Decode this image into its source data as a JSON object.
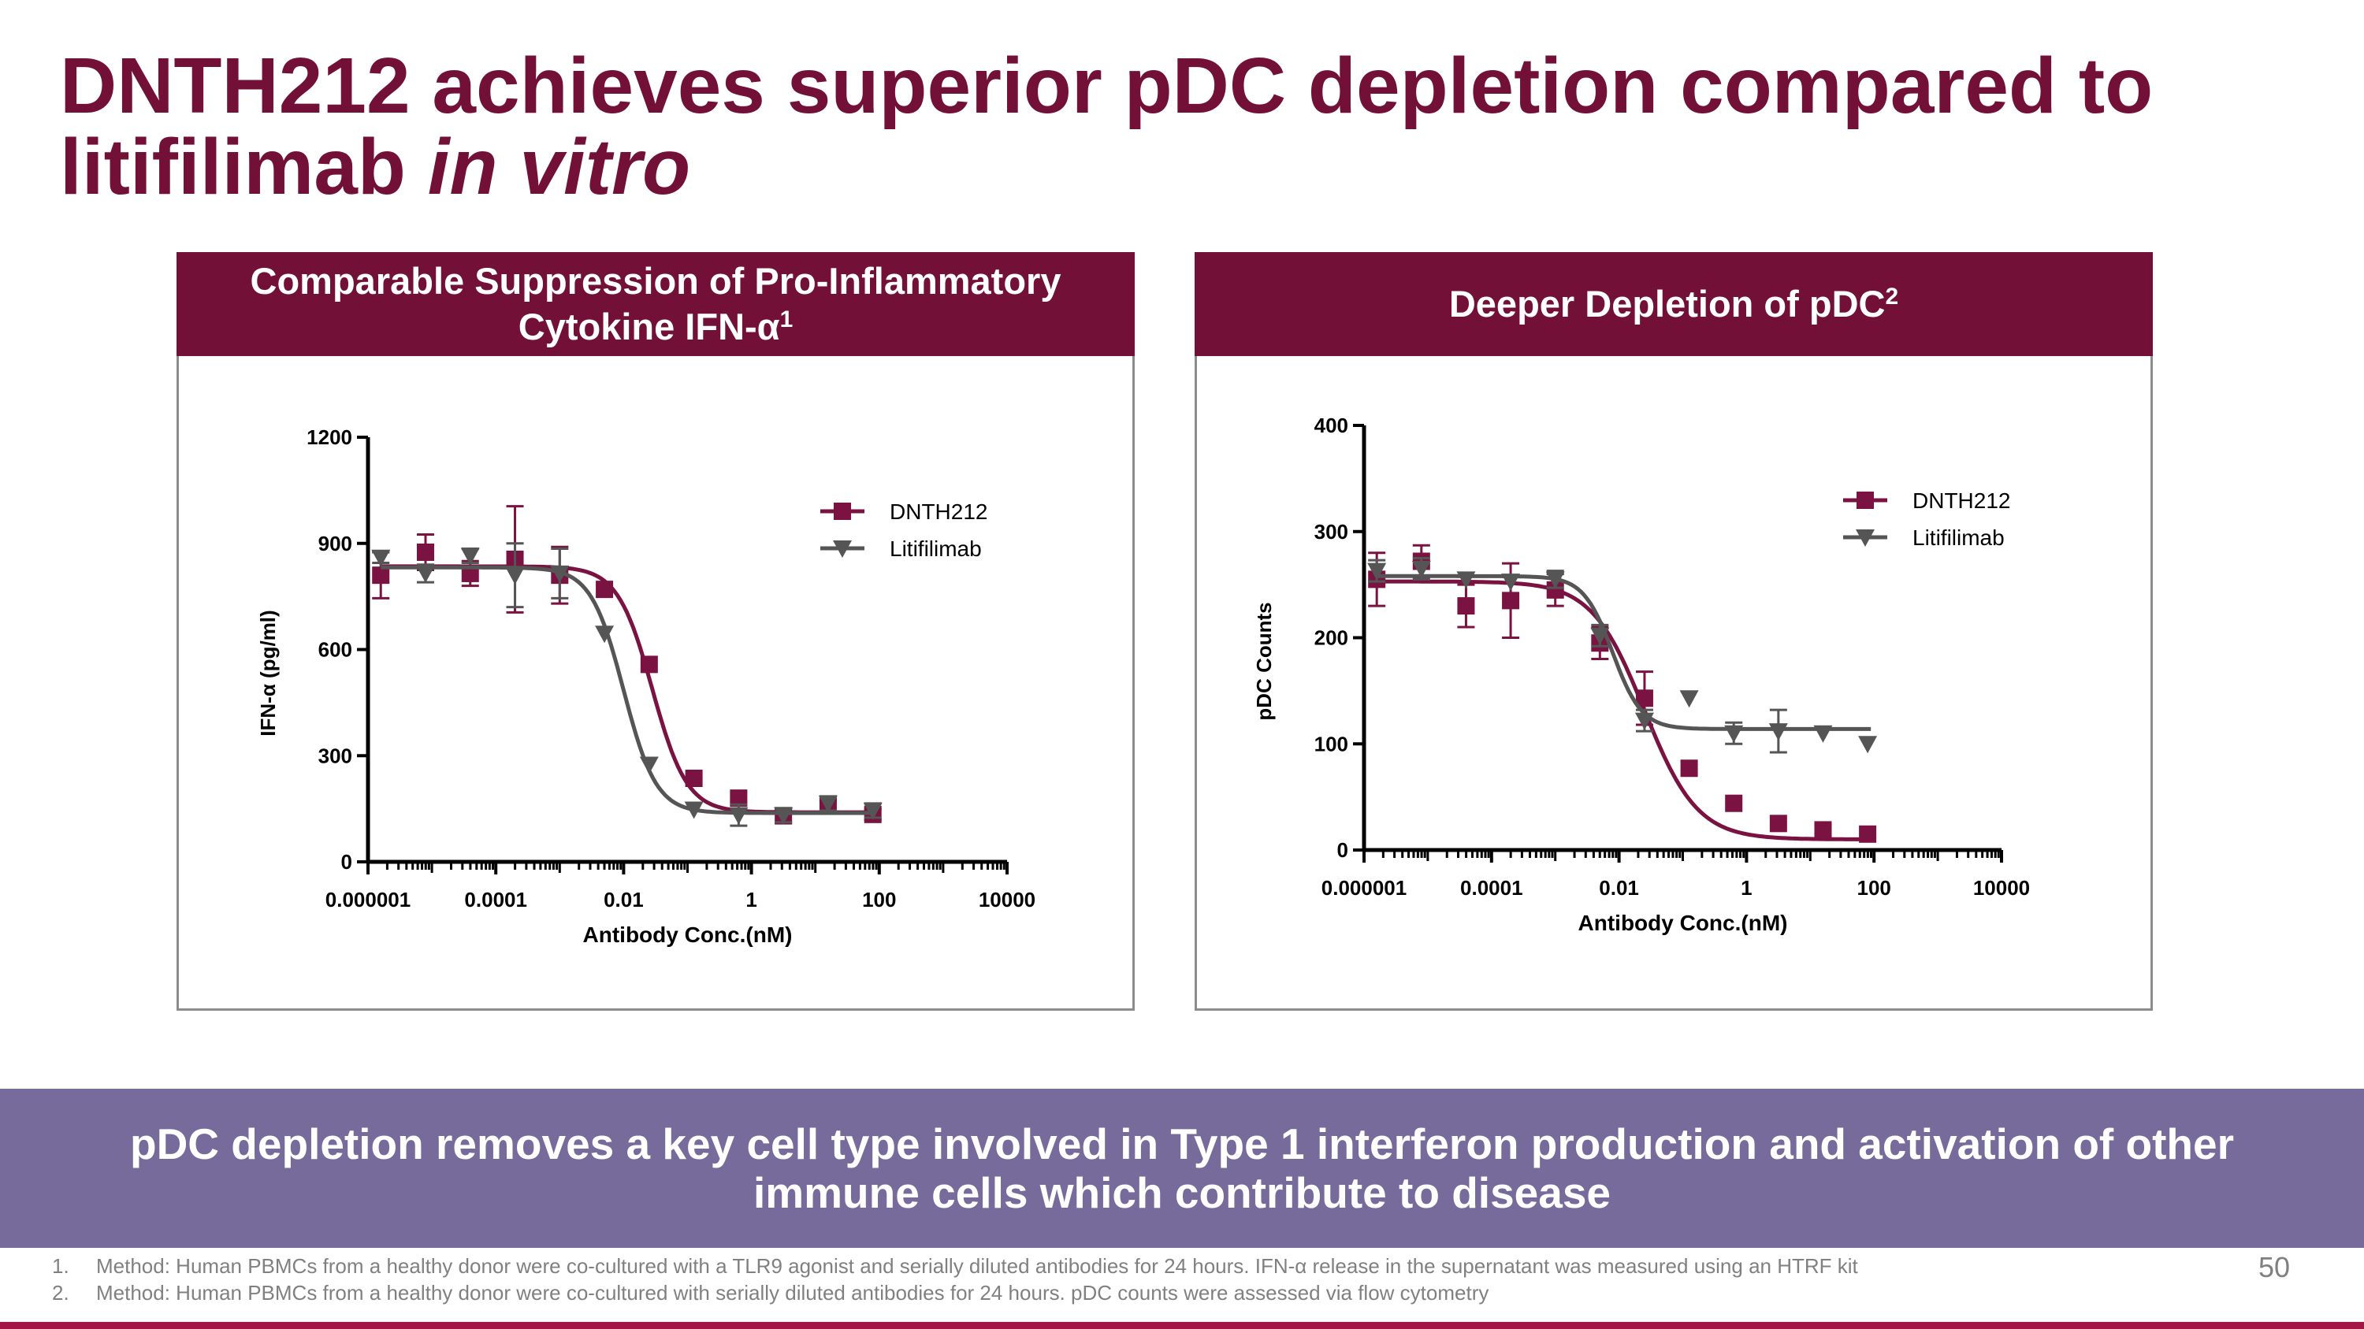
{
  "title": {
    "line1": "DNTH212 achieves superior pDC depletion compared to",
    "line2_normal": "litifilimab ",
    "line2_italic": "in vitro"
  },
  "colors": {
    "dnth212": "#7a1341",
    "litifilimab": "#555555",
    "header": "#731038",
    "banner": "#776b9c"
  },
  "panels": {
    "left": {
      "header_text": "Comparable Suppression of Pro-Inflammatory Cytokine IFN-α",
      "header_sup": "1"
    },
    "right": {
      "header_text": "Deeper Depletion of pDC",
      "header_sup": "2"
    }
  },
  "chart_data": [
    {
      "type": "line",
      "ylabel": "IFN-α (pg/ml)",
      "xlabel": "Antibody Conc.(nM)",
      "xscale": "log",
      "xlim_log10": [
        -6,
        4
      ],
      "ylim": [
        0,
        1200
      ],
      "yticks": [
        0,
        300,
        600,
        900,
        1200
      ],
      "xticks": [
        "0.000001",
        "0.0001",
        "0.01",
        "1",
        "100",
        "10000"
      ],
      "legend_position": "top-right",
      "series": [
        {
          "name": "DNTH212",
          "marker": "square",
          "fit": {
            "bottom": 140,
            "top": 835,
            "ec50_log10": -1.55,
            "hill": 1.6
          },
          "points": [
            {
              "log_x": -5.8,
              "y": 810,
              "err": 65
            },
            {
              "log_x": -5.1,
              "y": 875,
              "err": 50
            },
            {
              "log_x": -4.4,
              "y": 815,
              "err": 35
            },
            {
              "log_x": -3.7,
              "y": 855,
              "err": 150
            },
            {
              "log_x": -3.0,
              "y": 810,
              "err": 80
            },
            {
              "log_x": -2.3,
              "y": 770,
              "err": 0
            },
            {
              "log_x": -1.6,
              "y": 558,
              "err": 0
            },
            {
              "log_x": -0.9,
              "y": 236,
              "err": 0
            },
            {
              "log_x": -0.2,
              "y": 180,
              "err": 0
            },
            {
              "log_x": 0.5,
              "y": 130,
              "err": 20
            },
            {
              "log_x": 1.2,
              "y": 158,
              "err": 15
            },
            {
              "log_x": 1.9,
              "y": 134,
              "err": 15
            }
          ]
        },
        {
          "name": "Litifilimab",
          "marker": "triangle-down",
          "fit": {
            "bottom": 138,
            "top": 832,
            "ec50_log10": -2.0,
            "hill": 1.7
          },
          "points": [
            {
              "log_x": -5.8,
              "y": 860,
              "err": 15
            },
            {
              "log_x": -5.1,
              "y": 815,
              "err": 25
            },
            {
              "log_x": -4.4,
              "y": 865,
              "err": 20
            },
            {
              "log_x": -3.7,
              "y": 810,
              "err": 90
            },
            {
              "log_x": -3.0,
              "y": 815,
              "err": 70
            },
            {
              "log_x": -2.3,
              "y": 645,
              "err": 0
            },
            {
              "log_x": -1.6,
              "y": 275,
              "err": 0
            },
            {
              "log_x": -0.9,
              "y": 148,
              "err": 0
            },
            {
              "log_x": -0.2,
              "y": 132,
              "err": 30
            },
            {
              "log_x": 0.5,
              "y": 132,
              "err": 20
            },
            {
              "log_x": 1.2,
              "y": 165,
              "err": 20
            },
            {
              "log_x": 1.9,
              "y": 145,
              "err": 20
            }
          ]
        }
      ]
    },
    {
      "type": "line",
      "ylabel": "pDC Counts",
      "xlabel": "Antibody Conc.(nM)",
      "xscale": "log",
      "xlim_log10": [
        -6,
        4
      ],
      "ylim": [
        0,
        400
      ],
      "yticks": [
        0,
        100,
        200,
        300,
        400
      ],
      "xticks": [
        "0.000001",
        "0.0001",
        "0.01",
        "1",
        "100",
        "10000"
      ],
      "legend_position": "top-right",
      "series": [
        {
          "name": "DNTH212",
          "marker": "square",
          "fit": {
            "bottom": 10,
            "top": 253,
            "ec50_log10": -1.6,
            "hill": 1.05
          },
          "points": [
            {
              "log_x": -5.8,
              "y": 255,
              "err": 25
            },
            {
              "log_x": -5.1,
              "y": 272,
              "err": 15
            },
            {
              "log_x": -4.4,
              "y": 230,
              "err": 20
            },
            {
              "log_x": -3.7,
              "y": 235,
              "err": 35
            },
            {
              "log_x": -3.0,
              "y": 245,
              "err": 15
            },
            {
              "log_x": -2.3,
              "y": 195,
              "err": 15
            },
            {
              "log_x": -1.6,
              "y": 143,
              "err": 25
            },
            {
              "log_x": -0.9,
              "y": 77,
              "err": 0
            },
            {
              "log_x": -0.2,
              "y": 44,
              "err": 0
            },
            {
              "log_x": 0.5,
              "y": 25,
              "err": 0
            },
            {
              "log_x": 1.2,
              "y": 19,
              "err": 0
            },
            {
              "log_x": 1.9,
              "y": 15,
              "err": 0
            }
          ]
        },
        {
          "name": "Litifilimab",
          "marker": "triangle-down",
          "fit": {
            "bottom": 114,
            "top": 258,
            "ec50_log10": -2.1,
            "hill": 1.9
          },
          "points": [
            {
              "log_x": -5.8,
              "y": 263,
              "err": 10
            },
            {
              "log_x": -5.1,
              "y": 265,
              "err": 10
            },
            {
              "log_x": -4.4,
              "y": 255,
              "err": 0
            },
            {
              "log_x": -3.7,
              "y": 253,
              "err": 0
            },
            {
              "log_x": -3.0,
              "y": 255,
              "err": 8
            },
            {
              "log_x": -2.3,
              "y": 202,
              "err": 10
            },
            {
              "log_x": -1.6,
              "y": 122,
              "err": 10
            },
            {
              "log_x": -0.9,
              "y": 143,
              "err": 0
            },
            {
              "log_x": -0.2,
              "y": 110,
              "err": 10
            },
            {
              "log_x": 0.5,
              "y": 112,
              "err": 20
            },
            {
              "log_x": 1.2,
              "y": 110,
              "err": 0
            },
            {
              "log_x": 1.9,
              "y": 100,
              "err": 0
            }
          ]
        }
      ]
    }
  ],
  "banner": {
    "text": "pDC depletion removes a key cell type involved in Type 1 interferon production and activation of other immune cells which contribute to disease"
  },
  "footnotes": [
    {
      "num": "1.",
      "text": "Method: Human PBMCs from a healthy donor were co-cultured with a TLR9 agonist and serially diluted antibodies for 24 hours. IFN-α release in the supernatant was measured using an HTRF kit"
    },
    {
      "num": "2.",
      "text": "Method: Human PBMCs from a healthy donor were co-cultured with serially diluted antibodies for 24 hours. pDC counts were assessed via flow cytometry"
    }
  ],
  "page_number": "50"
}
